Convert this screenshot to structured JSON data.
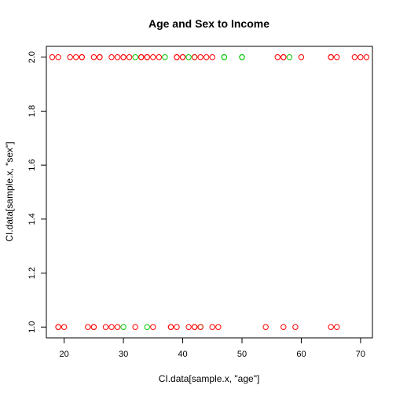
{
  "chart_data": {
    "type": "scatter",
    "title": "Age and Sex to Income",
    "xlabel": "CI.data[sample.x, \"age\"]",
    "ylabel": "CI.data[sample.x, \"sex\"]",
    "xlim": [
      17,
      72
    ],
    "ylim": [
      0.96,
      2.04
    ],
    "x_ticks": [
      20,
      30,
      40,
      50,
      60,
      70
    ],
    "y_ticks": [
      1.0,
      1.2,
      1.4,
      1.6,
      1.8,
      2.0
    ],
    "y_tick_labels": [
      "1.0",
      "1.2",
      "1.4",
      "1.6",
      "1.8",
      "2.0"
    ],
    "grid": false,
    "marker": "open-circle",
    "colors": {
      "red": "#ff0000",
      "green": "#00cd00"
    },
    "points": [
      {
        "x": 18,
        "y": 2,
        "color": "red"
      },
      {
        "x": 19,
        "y": 2,
        "color": "red"
      },
      {
        "x": 21,
        "y": 2,
        "color": "red"
      },
      {
        "x": 22,
        "y": 2,
        "color": "red"
      },
      {
        "x": 23,
        "y": 2,
        "color": "red"
      },
      {
        "x": 23,
        "y": 2,
        "color": "red"
      },
      {
        "x": 25,
        "y": 2,
        "color": "red"
      },
      {
        "x": 26,
        "y": 2,
        "color": "red"
      },
      {
        "x": 26,
        "y": 2,
        "color": "red"
      },
      {
        "x": 28,
        "y": 2,
        "color": "red"
      },
      {
        "x": 29,
        "y": 2,
        "color": "red"
      },
      {
        "x": 30,
        "y": 2,
        "color": "red"
      },
      {
        "x": 30,
        "y": 2,
        "color": "red"
      },
      {
        "x": 31,
        "y": 2,
        "color": "red"
      },
      {
        "x": 32,
        "y": 2,
        "color": "green"
      },
      {
        "x": 33,
        "y": 2,
        "color": "red"
      },
      {
        "x": 33,
        "y": 2,
        "color": "red"
      },
      {
        "x": 34,
        "y": 2,
        "color": "red"
      },
      {
        "x": 34,
        "y": 2,
        "color": "red"
      },
      {
        "x": 35,
        "y": 2,
        "color": "red"
      },
      {
        "x": 36,
        "y": 2,
        "color": "red"
      },
      {
        "x": 37,
        "y": 2,
        "color": "green"
      },
      {
        "x": 39,
        "y": 2,
        "color": "red"
      },
      {
        "x": 39,
        "y": 2,
        "color": "red"
      },
      {
        "x": 40,
        "y": 2,
        "color": "red"
      },
      {
        "x": 40,
        "y": 2,
        "color": "red"
      },
      {
        "x": 41,
        "y": 2,
        "color": "green"
      },
      {
        "x": 42,
        "y": 2,
        "color": "green"
      },
      {
        "x": 42,
        "y": 2,
        "color": "red"
      },
      {
        "x": 43,
        "y": 2,
        "color": "red"
      },
      {
        "x": 44,
        "y": 2,
        "color": "red"
      },
      {
        "x": 45,
        "y": 2,
        "color": "red"
      },
      {
        "x": 47,
        "y": 2,
        "color": "green"
      },
      {
        "x": 47,
        "y": 2,
        "color": "green"
      },
      {
        "x": 50,
        "y": 2,
        "color": "green"
      },
      {
        "x": 50,
        "y": 2,
        "color": "green"
      },
      {
        "x": 56,
        "y": 2,
        "color": "red"
      },
      {
        "x": 57,
        "y": 2,
        "color": "red"
      },
      {
        "x": 57,
        "y": 2,
        "color": "red"
      },
      {
        "x": 58,
        "y": 2,
        "color": "green"
      },
      {
        "x": 60,
        "y": 2,
        "color": "red"
      },
      {
        "x": 65,
        "y": 2,
        "color": "red"
      },
      {
        "x": 65,
        "y": 2,
        "color": "red"
      },
      {
        "x": 66,
        "y": 2,
        "color": "red"
      },
      {
        "x": 69,
        "y": 2,
        "color": "red"
      },
      {
        "x": 70,
        "y": 2,
        "color": "red"
      },
      {
        "x": 71,
        "y": 2,
        "color": "red"
      },
      {
        "x": 19,
        "y": 1,
        "color": "red"
      },
      {
        "x": 19,
        "y": 1,
        "color": "red"
      },
      {
        "x": 20,
        "y": 1,
        "color": "red"
      },
      {
        "x": 24,
        "y": 1,
        "color": "red"
      },
      {
        "x": 25,
        "y": 1,
        "color": "red"
      },
      {
        "x": 25,
        "y": 1,
        "color": "red"
      },
      {
        "x": 27,
        "y": 1,
        "color": "red"
      },
      {
        "x": 28,
        "y": 1,
        "color": "red"
      },
      {
        "x": 29,
        "y": 1,
        "color": "red"
      },
      {
        "x": 30,
        "y": 1,
        "color": "green"
      },
      {
        "x": 32,
        "y": 1,
        "color": "red"
      },
      {
        "x": 34,
        "y": 1,
        "color": "green"
      },
      {
        "x": 35,
        "y": 1,
        "color": "red"
      },
      {
        "x": 38,
        "y": 1,
        "color": "red"
      },
      {
        "x": 38,
        "y": 1,
        "color": "red"
      },
      {
        "x": 39,
        "y": 1,
        "color": "red"
      },
      {
        "x": 41,
        "y": 1,
        "color": "red"
      },
      {
        "x": 42,
        "y": 1,
        "color": "red"
      },
      {
        "x": 42,
        "y": 1,
        "color": "red"
      },
      {
        "x": 43,
        "y": 1,
        "color": "green"
      },
      {
        "x": 43,
        "y": 1,
        "color": "red"
      },
      {
        "x": 45,
        "y": 1,
        "color": "red"
      },
      {
        "x": 46,
        "y": 1,
        "color": "red"
      },
      {
        "x": 54,
        "y": 1,
        "color": "red"
      },
      {
        "x": 57,
        "y": 1,
        "color": "red"
      },
      {
        "x": 59,
        "y": 1,
        "color": "red"
      },
      {
        "x": 65,
        "y": 1,
        "color": "red"
      },
      {
        "x": 66,
        "y": 1,
        "color": "red"
      }
    ]
  }
}
